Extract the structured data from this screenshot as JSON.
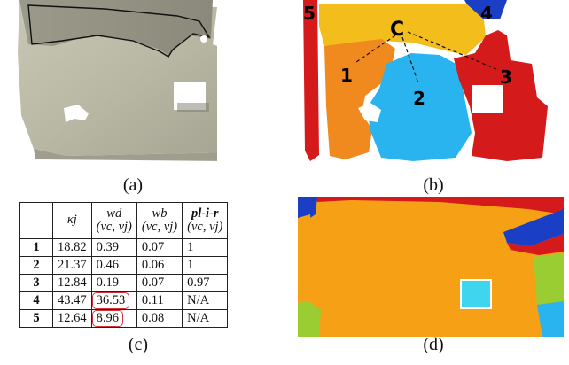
{
  "panels": {
    "a": {
      "caption": "(a)"
    },
    "b": {
      "caption": "(b)",
      "labels": {
        "center": "C",
        "seg1": "1",
        "seg2": "2",
        "seg3": "3",
        "seg4": "4",
        "seg5": "5"
      }
    },
    "c": {
      "caption": "(c)"
    },
    "d": {
      "caption": "(d)"
    }
  },
  "table": {
    "headers": [
      {
        "main": "",
        "sub": ""
      },
      {
        "main": "κj",
        "sub": ""
      },
      {
        "main": "wd",
        "sub": "(vc, vj)"
      },
      {
        "main": "wb",
        "sub": "(vc, vj)"
      },
      {
        "main": "pl-i-r",
        "sub": "(vc, vj)"
      }
    ],
    "rows": [
      {
        "id": "1",
        "kappa": "18.82",
        "wd": "0.39",
        "wb": "0.07",
        "plir": "1",
        "highlight": false
      },
      {
        "id": "2",
        "kappa": "21.37",
        "wd": "0.46",
        "wb": "0.06",
        "plir": "1",
        "highlight": false
      },
      {
        "id": "3",
        "kappa": "12.84",
        "wd": "0.19",
        "wb": "0.07",
        "plir": "0.97",
        "highlight": false
      },
      {
        "id": "4",
        "kappa": "43.47",
        "wd": "36.53",
        "wb": "0.11",
        "plir": "N/A",
        "highlight": true
      },
      {
        "id": "5",
        "kappa": "12.64",
        "wd": "8.96",
        "wb": "0.08",
        "plir": "N/A",
        "highlight": true
      }
    ]
  },
  "colors": {
    "orange": "#f08a1e",
    "red": "#d41a1a",
    "cyan": "#2ab4ef",
    "yellow": "#f3bd1c",
    "blue": "#1b3fc4",
    "dark_orange": "#f5a015",
    "highlight_box": "#d0343b"
  }
}
